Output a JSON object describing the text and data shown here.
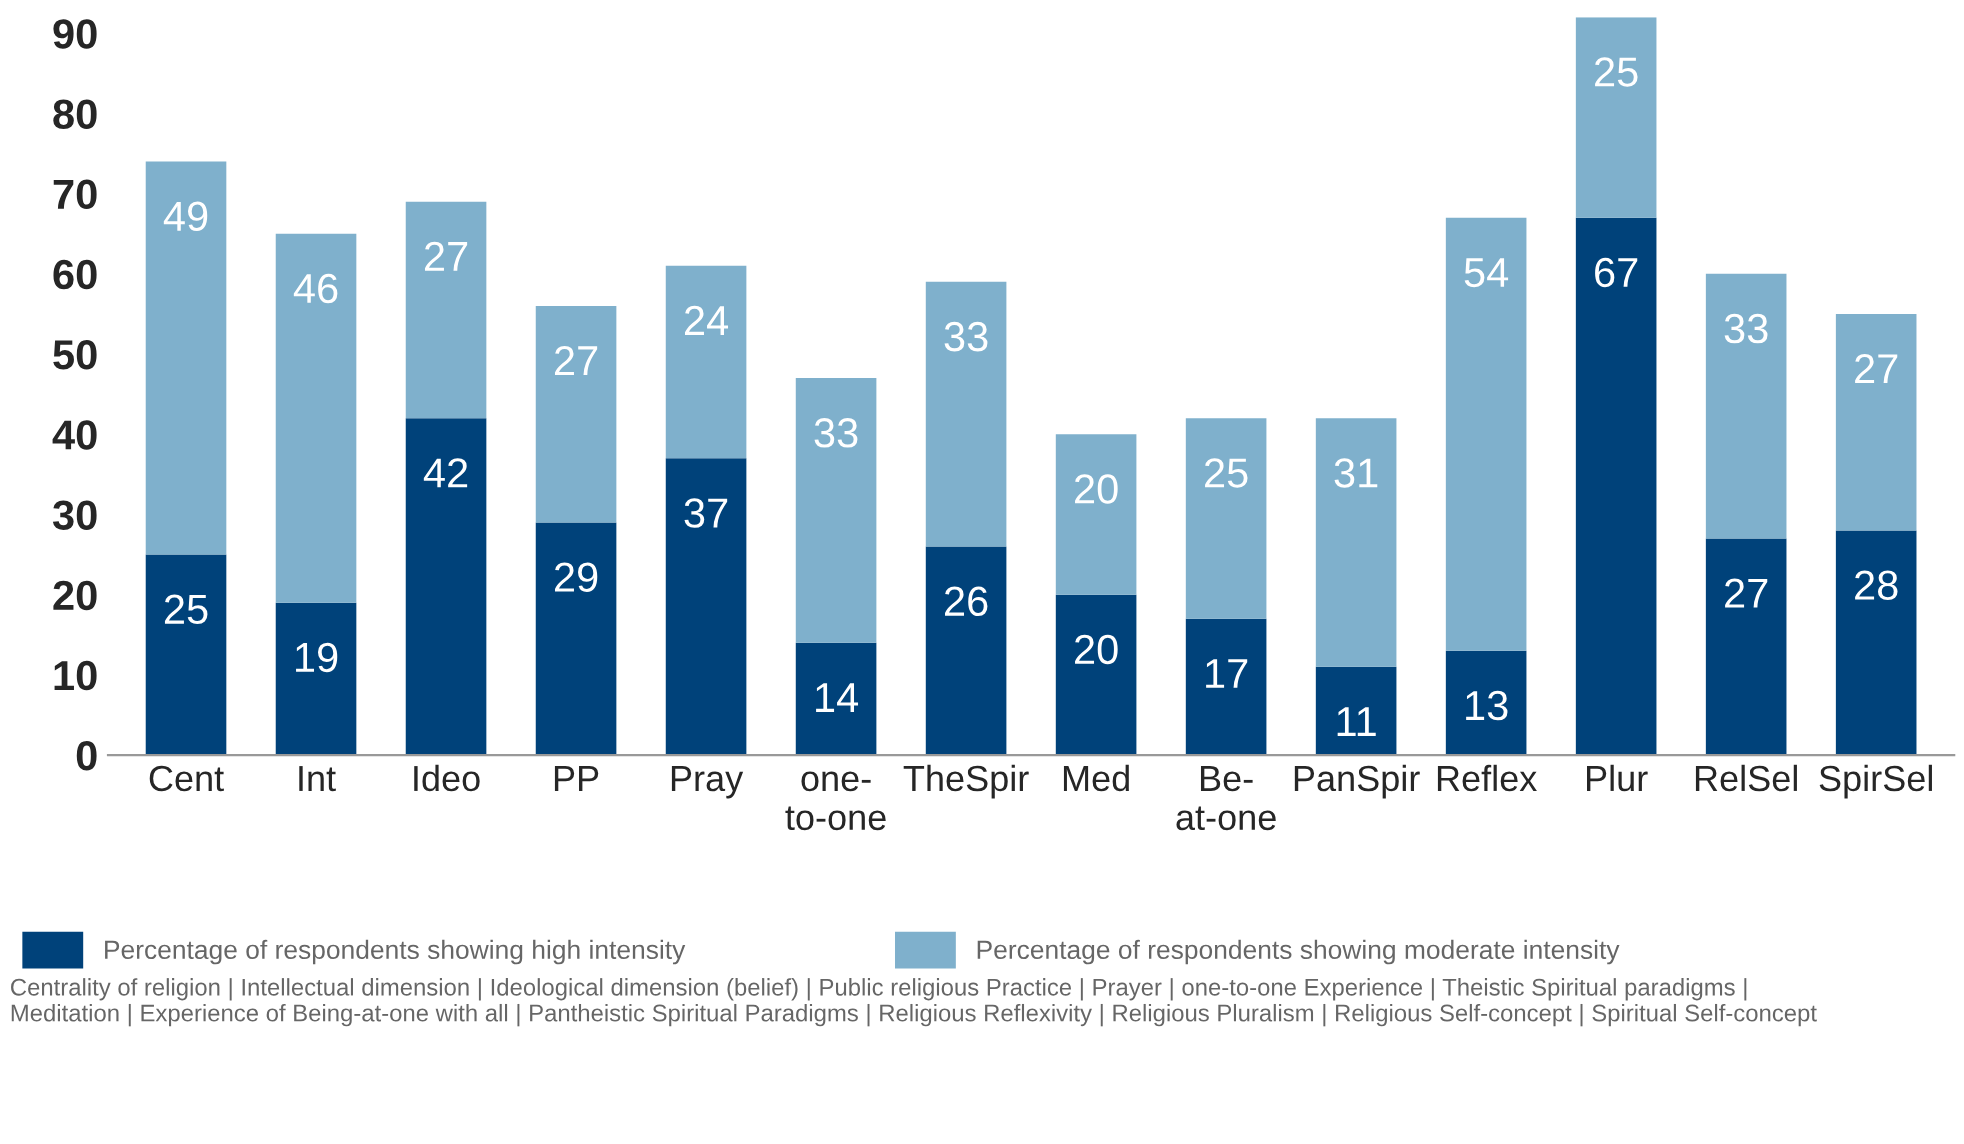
{
  "chart_data": {
    "type": "bar",
    "stacked": true,
    "categories": [
      "Cent",
      "Int",
      "Ideo",
      "PP",
      "Pray",
      "one-\nto-one",
      "TheSpir",
      "Med",
      "Be-\nat-one",
      "PanSpir",
      "Reflex",
      "Plur",
      "RelSel",
      "SpirSel"
    ],
    "series": [
      {
        "name": "Percentage of respondents showing high intensity",
        "color": "#00427a",
        "values": [
          25,
          19,
          42,
          29,
          37,
          14,
          26,
          20,
          17,
          11,
          13,
          67,
          27,
          28
        ]
      },
      {
        "name": "Percentage of respondents showing moderate intensity",
        "color": "#7fb0cc",
        "values": [
          49,
          46,
          27,
          27,
          24,
          33,
          33,
          20,
          25,
          31,
          54,
          25,
          33,
          27
        ]
      }
    ],
    "ylim": [
      0,
      92
    ],
    "yticks": [
      0,
      10,
      20,
      30,
      40,
      50,
      60,
      70,
      80,
      90
    ],
    "grid": false,
    "data_labels": true,
    "legend": "bottom",
    "annotations": [
      "Centrality of religion | Intellectual dimension | Ideological dimension (belief) | Public religious Practice | Prayer | one-to-one Experience | Theistic Spiritual paradigms |\nMeditation | Experience of Being-at-one with all | Pantheistic Spiritual Paradigms | Religious Reflexivity | Religious Pluralism | Religious Self-concept | Spiritual Self-concept"
    ]
  }
}
